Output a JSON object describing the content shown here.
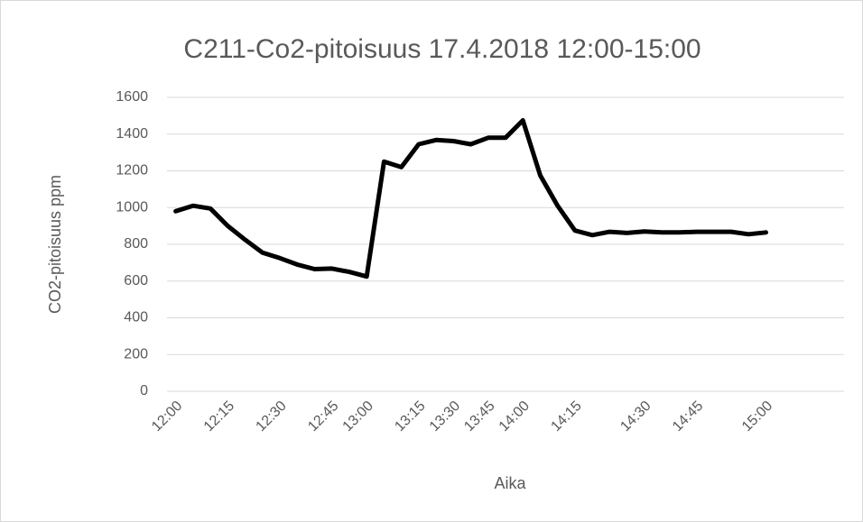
{
  "chart_data": {
    "type": "line",
    "title": "C211-Co2-pitoisuus 17.4.2018 12:00-15:00",
    "x_label": "Aika",
    "y_label": "CO2-pitoisuus ppm",
    "categories": [
      "12:00",
      null,
      null,
      "12:15",
      null,
      null,
      "12:30",
      null,
      null,
      "12:45",
      null,
      "13:00",
      null,
      null,
      "13:15",
      null,
      "13:30",
      null,
      "13:45",
      null,
      "14:00",
      null,
      null,
      "14:15",
      null,
      null,
      null,
      "14:30",
      null,
      null,
      "14:45",
      null,
      null,
      null,
      "15:00",
      null,
      null,
      null,
      null
    ],
    "series": [
      {
        "name": "CO2",
        "color": "#000000",
        "values": [
          980,
          1010,
          995,
          900,
          825,
          755,
          725,
          690,
          665,
          668,
          650,
          625,
          1250,
          1220,
          1345,
          1368,
          1362,
          1345,
          1380,
          1380,
          1475,
          1175,
          1010,
          875,
          850,
          868,
          862,
          870,
          865,
          865,
          868,
          868,
          868,
          855,
          865,
          null,
          null,
          null,
          null
        ]
      }
    ],
    "ylim": [
      0,
      1600
    ],
    "yticks": [
      0,
      200,
      400,
      600,
      800,
      1000,
      1200,
      1400,
      1600
    ],
    "grid": true
  }
}
